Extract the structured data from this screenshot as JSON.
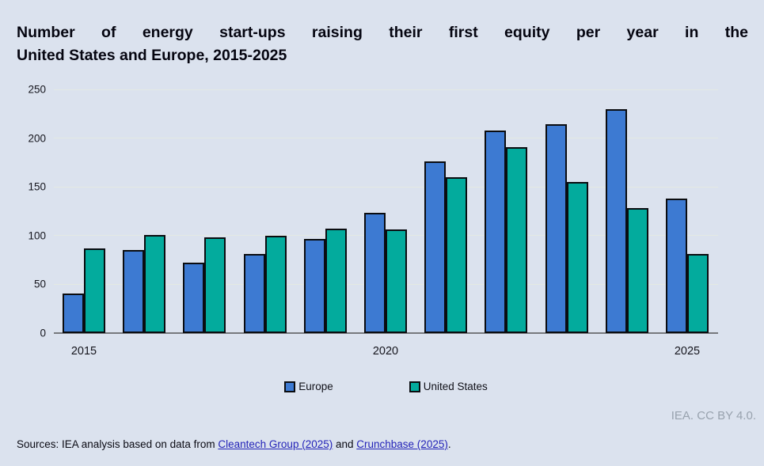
{
  "title": {
    "line1": "Number of energy start-ups raising their first equity per year in the",
    "line2": "United States and Europe, 2015-2025"
  },
  "chart_data": {
    "type": "bar",
    "title": "Number of energy start-ups raising their first equity per year in the United States and Europe, 2015-2025",
    "categories": [
      "2015",
      "2016",
      "2017",
      "2018",
      "2019",
      "2020",
      "2021",
      "2022",
      "2023",
      "2024",
      "2025"
    ],
    "series": [
      {
        "name": "Europe",
        "color": "#3d7ad2",
        "values": [
          41,
          85,
          72,
          81,
          97,
          123,
          176,
          208,
          214,
          230,
          138
        ]
      },
      {
        "name": "United States",
        "color": "#03ab9d",
        "values": [
          87,
          101,
          98,
          100,
          107,
          106,
          160,
          191,
          155,
          128,
          81
        ]
      }
    ],
    "xlabel": "",
    "ylabel": "",
    "ylim": [
      0,
      250
    ],
    "yticks": [
      0,
      50,
      100,
      150,
      200,
      250
    ],
    "xticks_shown": [
      "2015",
      "2020",
      "2025"
    ],
    "grid": "horizontal",
    "legend_position": "bottom-center",
    "bar_border_color": "#0a0c10",
    "background_color": "#dbe2ee"
  },
  "legend": {
    "items": [
      {
        "label": "Europe",
        "color": "#3d7ad2"
      },
      {
        "label": "United States",
        "color": "#03ab9d"
      }
    ]
  },
  "credit": "IEA. CC BY 4.0.",
  "sources": {
    "prefix": "Sources: IEA analysis based on data from ",
    "link1": "Cleantech Group (2025)",
    "middle": " and ",
    "link2": "Crunchbase (2025)",
    "suffix": "."
  }
}
